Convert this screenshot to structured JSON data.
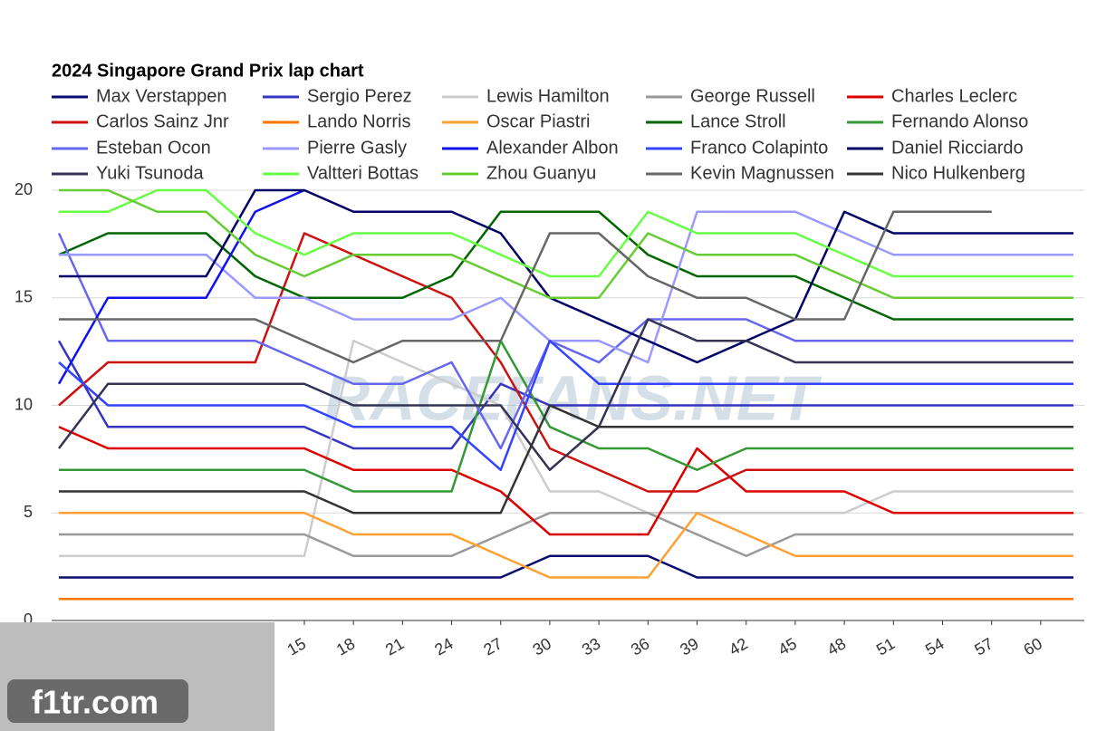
{
  "chart_data": {
    "type": "line",
    "title": "2024 Singapore Grand Prix lap chart",
    "watermarks": [
      "RACEFANS.NET",
      "f1tr.com"
    ],
    "x": [
      0,
      3,
      6,
      9,
      12,
      15,
      18,
      21,
      24,
      27,
      30,
      33,
      36,
      39,
      42,
      45,
      48,
      51,
      54,
      57,
      60,
      62
    ],
    "xlim": [
      0,
      62
    ],
    "xticks": [
      15,
      18,
      21,
      24,
      27,
      30,
      33,
      36,
      39,
      42,
      45,
      48,
      51,
      54,
      57,
      60
    ],
    "ylim": [
      0,
      20
    ],
    "yticks": [
      0,
      5,
      10,
      15,
      20
    ],
    "grid": true,
    "series": [
      {
        "name": "Max Verstappen",
        "color": "#0a0a70",
        "values": [
          2,
          2,
          2,
          2,
          2,
          2,
          2,
          2,
          2,
          2,
          3,
          3,
          3,
          2,
          2,
          2,
          2,
          2,
          2,
          2,
          2,
          2
        ]
      },
      {
        "name": "Sergio Perez",
        "color": "#3535c0",
        "values": [
          13,
          9,
          9,
          9,
          9,
          9,
          8,
          8,
          8,
          11,
          10,
          10,
          10,
          10,
          10,
          10,
          10,
          10,
          10,
          10,
          10,
          10
        ]
      },
      {
        "name": "Lewis Hamilton",
        "color": "#cccccc",
        "values": [
          3,
          3,
          3,
          3,
          3,
          3,
          13,
          12,
          11,
          10,
          6,
          6,
          5,
          5,
          5,
          5,
          5,
          6,
          6,
          6,
          6,
          6
        ]
      },
      {
        "name": "George Russell",
        "color": "#999999",
        "values": [
          4,
          4,
          4,
          4,
          4,
          4,
          3,
          3,
          3,
          4,
          5,
          5,
          5,
          4,
          3,
          4,
          4,
          4,
          4,
          4,
          4,
          4
        ]
      },
      {
        "name": "Charles Leclerc",
        "color": "#dd0000",
        "values": [
          9,
          8,
          8,
          8,
          8,
          8,
          7,
          7,
          7,
          6,
          4,
          4,
          4,
          8,
          6,
          6,
          6,
          5,
          5,
          5,
          5,
          5
        ]
      },
      {
        "name": "Carlos Sainz Jnr",
        "color": "#cc1111",
        "values": [
          10,
          12,
          12,
          12,
          12,
          18,
          17,
          16,
          15,
          12,
          8,
          7,
          6,
          6,
          7,
          7,
          7,
          7,
          7,
          7,
          7,
          7
        ]
      },
      {
        "name": "Lando Norris",
        "color": "#ff7700",
        "values": [
          1,
          1,
          1,
          1,
          1,
          1,
          1,
          1,
          1,
          1,
          1,
          1,
          1,
          1,
          1,
          1,
          1,
          1,
          1,
          1,
          1,
          1
        ]
      },
      {
        "name": "Oscar Piastri",
        "color": "#ffa033",
        "values": [
          5,
          5,
          5,
          5,
          5,
          5,
          4,
          4,
          4,
          3,
          2,
          2,
          2,
          5,
          4,
          3,
          3,
          3,
          3,
          3,
          3,
          3
        ]
      },
      {
        "name": "Lance Stroll",
        "color": "#006600",
        "values": [
          17,
          18,
          18,
          18,
          16,
          15,
          15,
          15,
          16,
          19,
          19,
          19,
          17,
          16,
          16,
          16,
          15,
          14,
          14,
          14,
          14,
          14
        ]
      },
      {
        "name": "Fernando Alonso",
        "color": "#339933",
        "values": [
          7,
          7,
          7,
          7,
          7,
          7,
          6,
          6,
          6,
          13,
          9,
          8,
          8,
          7,
          8,
          8,
          8,
          8,
          8,
          8,
          8,
          8
        ]
      },
      {
        "name": "Esteban Ocon",
        "color": "#6666ee",
        "values": [
          18,
          13,
          13,
          13,
          13,
          12,
          11,
          11,
          12,
          8,
          13,
          12,
          14,
          14,
          14,
          13,
          13,
          13,
          13,
          13,
          13,
          13
        ]
      },
      {
        "name": "Pierre Gasly",
        "color": "#9999ff",
        "values": [
          17,
          17,
          17,
          17,
          15,
          15,
          14,
          14,
          14,
          15,
          13,
          13,
          12,
          19,
          19,
          19,
          18,
          17,
          17,
          17,
          17,
          17
        ]
      },
      {
        "name": "Alexander Albon",
        "color": "#1111ee",
        "values": [
          11,
          15,
          15,
          15,
          19,
          20,
          null,
          null,
          null,
          null,
          null,
          null,
          null,
          null,
          null,
          null,
          null,
          null,
          null,
          null,
          null,
          null
        ]
      },
      {
        "name": "Franco Colapinto",
        "color": "#3344ff",
        "values": [
          12,
          10,
          10,
          10,
          10,
          10,
          9,
          9,
          9,
          7,
          13,
          11,
          11,
          11,
          11,
          11,
          11,
          11,
          11,
          11,
          11,
          11
        ]
      },
      {
        "name": "Daniel Ricciardo",
        "color": "#000066",
        "values": [
          16,
          16,
          16,
          16,
          20,
          20,
          19,
          19,
          19,
          18,
          15,
          14,
          13,
          12,
          13,
          14,
          19,
          18,
          18,
          18,
          18,
          18
        ]
      },
      {
        "name": "Yuki Tsunoda",
        "color": "#333355",
        "values": [
          8,
          11,
          11,
          11,
          11,
          11,
          10,
          10,
          10,
          10,
          7,
          9,
          14,
          13,
          13,
          12,
          12,
          12,
          12,
          12,
          12,
          12
        ]
      },
      {
        "name": "Valtteri Bottas",
        "color": "#66ff44",
        "values": [
          19,
          19,
          20,
          20,
          18,
          17,
          18,
          18,
          18,
          17,
          16,
          16,
          19,
          18,
          18,
          18,
          17,
          16,
          16,
          16,
          16,
          16
        ]
      },
      {
        "name": "Zhou Guanyu",
        "color": "#66cc33",
        "values": [
          20,
          20,
          19,
          19,
          17,
          16,
          17,
          17,
          17,
          16,
          15,
          15,
          18,
          17,
          17,
          17,
          16,
          15,
          15,
          15,
          15,
          15
        ]
      },
      {
        "name": "Kevin Magnussen",
        "color": "#666666",
        "values": [
          14,
          14,
          14,
          14,
          14,
          13,
          12,
          13,
          13,
          13,
          18,
          18,
          16,
          15,
          15,
          14,
          14,
          19,
          19,
          19,
          null,
          null
        ]
      },
      {
        "name": "Nico Hulkenberg",
        "color": "#333333",
        "values": [
          6,
          6,
          6,
          6,
          6,
          6,
          5,
          5,
          5,
          5,
          10,
          9,
          9,
          9,
          9,
          9,
          9,
          9,
          9,
          9,
          9,
          9
        ]
      }
    ]
  }
}
